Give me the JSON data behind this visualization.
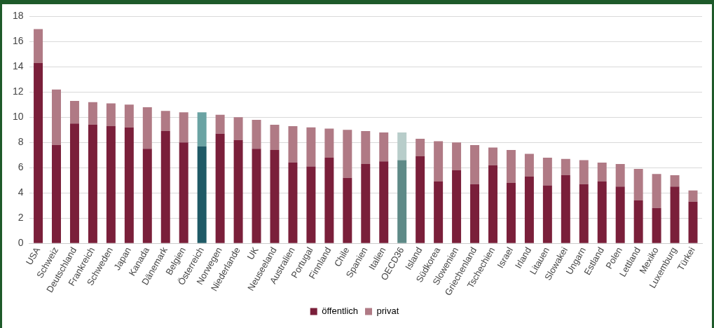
{
  "chart_data": {
    "type": "bar",
    "stacked": true,
    "legend": "bottom",
    "grid": "y",
    "categories": [
      "USA",
      "Schweiz",
      "Deutschland",
      "Frankreich",
      "Schweden",
      "Japan",
      "Kanada",
      "Dänemark",
      "Belgien",
      "Österreich",
      "Norwegen",
      "Niederlande",
      "UK",
      "Neuseeland",
      "Australien",
      "Portugal",
      "Finnland",
      "Chile",
      "Spanien",
      "Italien",
      "OECD36",
      "Island",
      "Südkorea",
      "Slowenien",
      "Griechenland",
      "Tschechien",
      "Israel",
      "Irland",
      "Litauen",
      "Slowakei",
      "Ungarn",
      "Estland",
      "Polen",
      "Lettland",
      "Mexiko",
      "Luxemburg",
      "Türkei"
    ],
    "ylim": [
      0,
      18
    ],
    "yticks": [
      0,
      2,
      4,
      6,
      8,
      10,
      12,
      14,
      16,
      18
    ],
    "series": [
      {
        "name": "öffentlich",
        "color": "#7a1f3a",
        "colors": [
          "#7a1f3a",
          "#7a1f3a",
          "#7a1f3a",
          "#7a1f3a",
          "#7a1f3a",
          "#7a1f3a",
          "#7a1f3a",
          "#7a1f3a",
          "#7a1f3a",
          "#1f5a66",
          "#7a1f3a",
          "#7a1f3a",
          "#7a1f3a",
          "#7a1f3a",
          "#7a1f3a",
          "#7a1f3a",
          "#7a1f3a",
          "#7a1f3a",
          "#7a1f3a",
          "#7a1f3a",
          "#5e8a87",
          "#7a1f3a",
          "#7a1f3a",
          "#7a1f3a",
          "#7a1f3a",
          "#7a1f3a",
          "#7a1f3a",
          "#7a1f3a",
          "#7a1f3a",
          "#7a1f3a",
          "#7a1f3a",
          "#7a1f3a",
          "#7a1f3a",
          "#7a1f3a",
          "#7a1f3a",
          "#7a1f3a",
          "#7a1f3a"
        ],
        "values": [
          14.3,
          7.8,
          9.5,
          9.4,
          9.3,
          9.2,
          7.5,
          8.9,
          8.0,
          7.7,
          8.7,
          8.2,
          7.5,
          7.4,
          6.4,
          6.1,
          6.8,
          5.2,
          6.3,
          6.5,
          6.6,
          6.9,
          4.9,
          5.8,
          4.7,
          6.2,
          4.8,
          5.3,
          4.6,
          5.4,
          4.7,
          4.9,
          4.5,
          3.4,
          2.8,
          4.5,
          3.3
        ]
      },
      {
        "name": "privat",
        "color": "#b07a85",
        "colors": [
          "#b07a85",
          "#b07a85",
          "#b07a85",
          "#b07a85",
          "#b07a85",
          "#b07a85",
          "#b07a85",
          "#b07a85",
          "#b07a85",
          "#6aa3a3",
          "#b07a85",
          "#b07a85",
          "#b07a85",
          "#b07a85",
          "#b07a85",
          "#b07a85",
          "#b07a85",
          "#b07a85",
          "#b07a85",
          "#b07a85",
          "#b8cdca",
          "#b07a85",
          "#b07a85",
          "#b07a85",
          "#b07a85",
          "#b07a85",
          "#b07a85",
          "#b07a85",
          "#b07a85",
          "#b07a85",
          "#b07a85",
          "#b07a85",
          "#b07a85",
          "#b07a85",
          "#b07a85",
          "#b07a85",
          "#b07a85"
        ],
        "values": [
          2.7,
          4.4,
          1.8,
          1.8,
          1.8,
          1.8,
          3.3,
          1.6,
          2.4,
          2.7,
          1.5,
          1.8,
          2.3,
          2.0,
          2.9,
          3.1,
          2.3,
          3.8,
          2.6,
          2.3,
          2.2,
          1.4,
          3.2,
          2.2,
          3.1,
          1.4,
          2.6,
          1.8,
          2.2,
          1.3,
          1.9,
          1.5,
          1.8,
          2.5,
          2.7,
          0.9,
          0.9
        ]
      }
    ]
  }
}
